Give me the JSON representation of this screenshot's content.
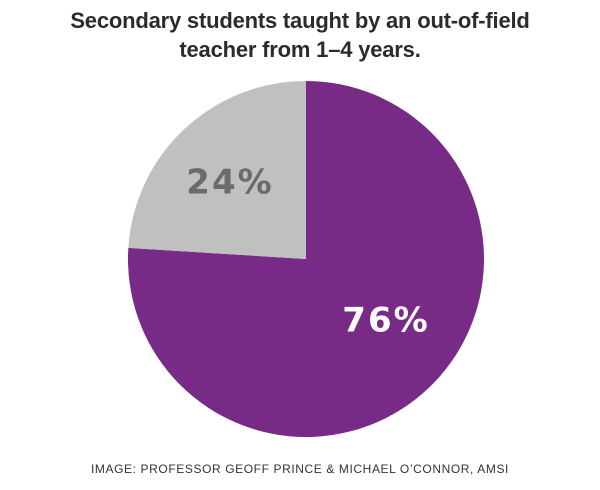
{
  "title_lines": [
    "Secondary students taught by an out-of-field",
    "teacher from 1–4 years."
  ],
  "credit": "IMAGE: PROFESSOR GEOFF PRINCE & MICHAEL O’CONNOR, AMSI",
  "chart_data": {
    "type": "pie",
    "title": "Secondary students taught by an out-of-field teacher from 1–4 years.",
    "start_angle": "12 o'clock",
    "direction": "clockwise",
    "slices": [
      {
        "value": 76,
        "label": "76%",
        "color": "#772b86",
        "label_color": "#ffffff"
      },
      {
        "value": 24,
        "label": "24%",
        "color": "#c0c0c0",
        "label_color": "#6b6b6b"
      }
    ]
  }
}
